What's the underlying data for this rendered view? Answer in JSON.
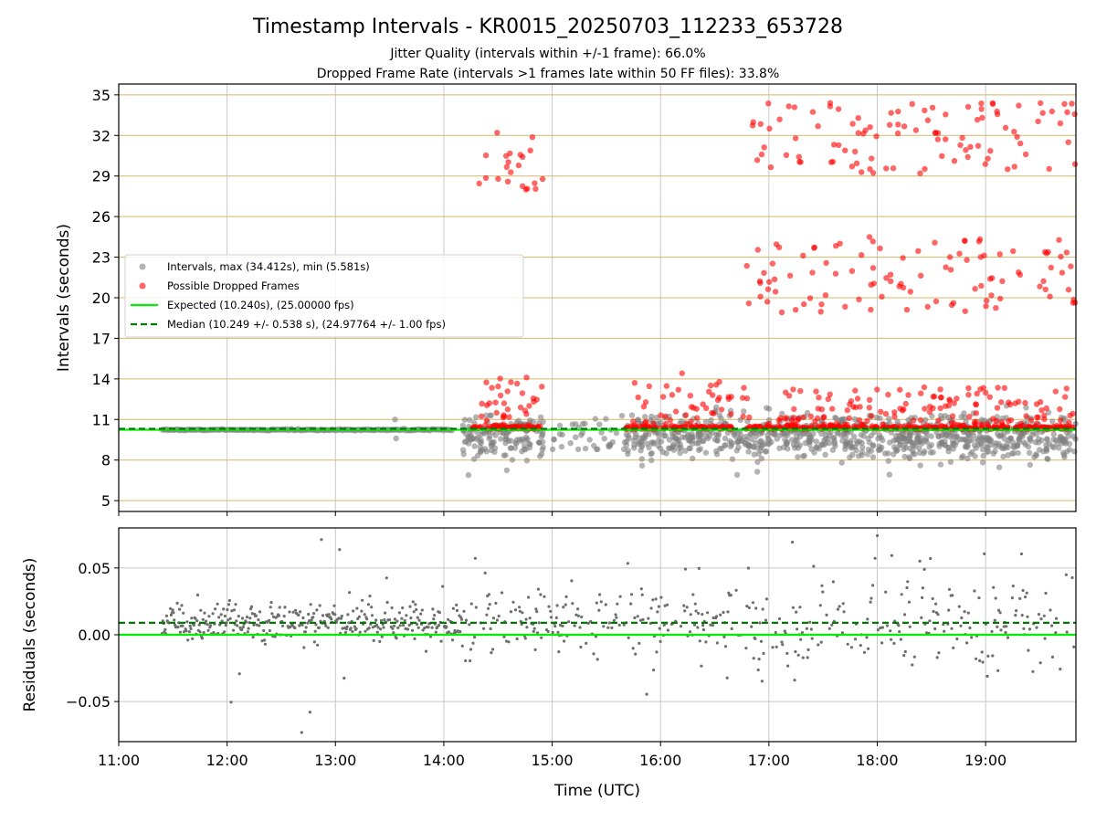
{
  "figure": {
    "title": "Timestamp Intervals - KR0015_20250703_112233_653728",
    "subtitle_1": "Jitter Quality (intervals within +/-1 frame): 66.0%",
    "subtitle_2": "Dropped Frame Rate (intervals >1 frames late within 50 FF files): 33.8%"
  },
  "colors": {
    "intervals": "#808080",
    "dropped": "#ff0000",
    "expected": "#00ee00",
    "median": "#007700",
    "hgrid_top": "#d4b86a",
    "grid": "#c8c8c8",
    "residual_points": "#6e6e6e"
  },
  "chart_data": [
    {
      "type": "scatter",
      "xlabel": "",
      "ylabel": "Intervals (seconds)",
      "xlim": [
        "11:00",
        "19:50"
      ],
      "ylim": [
        4.2,
        35.8
      ],
      "y_ticks": [
        "5",
        "8",
        "11",
        "14",
        "17",
        "20",
        "23",
        "26",
        "29",
        "32",
        "35"
      ],
      "grid": true,
      "legend_position": "left",
      "legend": [
        {
          "label": "Intervals, max (34.412s), min (5.581s)",
          "kind": "marker",
          "color": "#808080"
        },
        {
          "label": "Possible Dropped Frames",
          "kind": "marker",
          "color": "#ff0000"
        },
        {
          "label": "Expected (10.240s), (25.00000 fps)",
          "kind": "line",
          "color": "#00ee00"
        },
        {
          "label": "Median (10.249 +/- 0.538 s), (24.97764 +/- 1.00 fps)",
          "kind": "dashed",
          "color": "#007700"
        }
      ],
      "expected_interval": 10.24,
      "median_interval": 10.249,
      "stable_segment": {
        "x_start": "11:24",
        "x_end": "14:05",
        "y": 10.24
      },
      "dropped_clusters": [
        {
          "x_range": [
            "14:15",
            "14:55"
          ],
          "y_range": [
            28.0,
            32.5
          ]
        },
        {
          "x_range": [
            "14:15",
            "14:55"
          ],
          "y_range": [
            10.3,
            14.9
          ]
        },
        {
          "x_range": [
            "15:40",
            "16:40"
          ],
          "y_range": [
            10.3,
            14.5
          ]
        },
        {
          "x_range": [
            "16:45",
            "19:50"
          ],
          "y_range": [
            29.2,
            34.4
          ]
        },
        {
          "x_range": [
            "16:45",
            "19:50"
          ],
          "y_range": [
            18.7,
            24.6
          ]
        },
        {
          "x_range": [
            "16:45",
            "19:50"
          ],
          "y_range": [
            10.3,
            13.4
          ]
        }
      ],
      "interval_clusters": [
        {
          "x_range": [
            "14:10",
            "14:55"
          ],
          "y_range": [
            5.6,
            11.3
          ]
        },
        {
          "x_range": [
            "15:00",
            "15:40"
          ],
          "y_range": [
            8.8,
            11.3
          ]
        },
        {
          "x_range": [
            "15:40",
            "19:50"
          ],
          "y_range": [
            6.0,
            12.2
          ]
        }
      ]
    },
    {
      "type": "scatter",
      "xlabel": "Time (UTC)",
      "ylabel": "Residuals (seconds)",
      "xlim": [
        "11:00",
        "19:50"
      ],
      "ylim": [
        -0.08,
        0.08
      ],
      "y_ticks": [
        "0.05",
        "0.00",
        "−0.05"
      ],
      "x_ticks": [
        "11:00",
        "12:00",
        "13:00",
        "14:00",
        "15:00",
        "16:00",
        "17:00",
        "18:00",
        "19:00"
      ],
      "grid": true,
      "expected_residual": 0.0,
      "median_residual": 0.009,
      "x_range_points": [
        "11:24",
        "19:50"
      ],
      "core_band": [
        -0.01,
        0.03
      ]
    }
  ]
}
